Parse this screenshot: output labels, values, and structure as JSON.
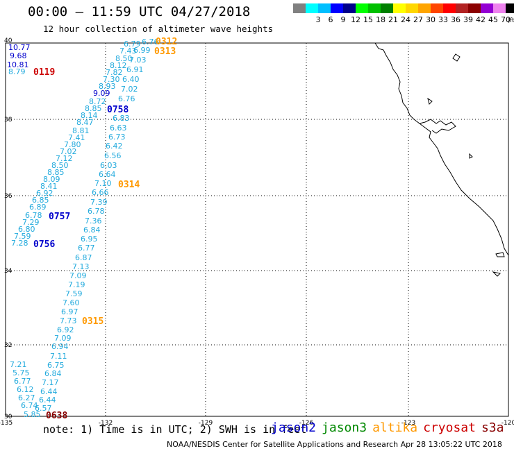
{
  "header": {
    "title": "00:00 – 11:59 UTC 04/27/2018",
    "subtitle": "12 hour collection of altimeter wave heights"
  },
  "legend": {
    "unit": "(ft)",
    "swatches": [
      {
        "color": "#808080",
        "label": ""
      },
      {
        "color": "#00ffff",
        "label": "3"
      },
      {
        "color": "#00bfff",
        "label": "6"
      },
      {
        "color": "#0000ff",
        "label": "9"
      },
      {
        "color": "#00008b",
        "label": "12"
      },
      {
        "color": "#00ff00",
        "label": "15"
      },
      {
        "color": "#00c000",
        "label": "18"
      },
      {
        "color": "#008000",
        "label": "21"
      },
      {
        "color": "#ffff00",
        "label": "24"
      },
      {
        "color": "#ffd700",
        "label": "27"
      },
      {
        "color": "#ffa500",
        "label": "30"
      },
      {
        "color": "#ff4500",
        "label": "33"
      },
      {
        "color": "#ff0000",
        "label": "36"
      },
      {
        "color": "#b22222",
        "label": "39"
      },
      {
        "color": "#8b0000",
        "label": "42"
      },
      {
        "color": "#9400d3",
        "label": "45"
      },
      {
        "color": "#ee82ee",
        "label": "70"
      },
      {
        "color": "#000000",
        "label": ""
      }
    ]
  },
  "map": {
    "xlabels": [
      "-135",
      "-132",
      "-129",
      "-126",
      "-123",
      "-120"
    ],
    "ylabels": [
      "40",
      "38",
      "36",
      "34",
      "32",
      "30"
    ],
    "satellite_colors": {
      "jason2": "#0000cc",
      "jason3": "#008800",
      "altika": "#ff9900",
      "cryosat": "#cc0000",
      "s3a": "#880000",
      "light": "#22aadd"
    },
    "pass_labels": [
      {
        "text": "0312",
        "sat": "altika"
      },
      {
        "text": "0313",
        "sat": "altika"
      },
      {
        "text": "0119",
        "sat": "cryosat"
      },
      {
        "text": "0758",
        "sat": "jason2"
      },
      {
        "text": "0314",
        "sat": "altika"
      },
      {
        "text": "0757",
        "sat": "jason2"
      },
      {
        "text": "0756",
        "sat": "jason2"
      },
      {
        "text": "0315",
        "sat": "altika"
      },
      {
        "text": "0638",
        "sat": "s3a"
      }
    ],
    "wave_labels": [
      {
        "text": "10.77",
        "c": "jason2"
      },
      {
        "text": "9.68",
        "c": "jason2"
      },
      {
        "text": "10.81",
        "c": "jason2"
      },
      {
        "text": "8.79",
        "c": "light"
      },
      {
        "text": "6.76",
        "c": "light"
      },
      {
        "text": "6.79",
        "c": "light"
      },
      {
        "text": "7.43",
        "c": "light"
      },
      {
        "text": "6.99",
        "c": "light"
      },
      {
        "text": "8.50",
        "c": "light"
      },
      {
        "text": "7.03",
        "c": "light"
      },
      {
        "text": "8.12",
        "c": "light"
      },
      {
        "text": "6.91",
        "c": "light"
      },
      {
        "text": "7.82",
        "c": "light"
      },
      {
        "text": "7.30",
        "c": "light"
      },
      {
        "text": "6.40",
        "c": "light"
      },
      {
        "text": "8.93",
        "c": "light"
      },
      {
        "text": "7.02",
        "c": "light"
      },
      {
        "text": "9.09",
        "c": "jason2"
      },
      {
        "text": "8.72",
        "c": "light"
      },
      {
        "text": "6.76",
        "c": "light"
      },
      {
        "text": "8.85",
        "c": "light"
      },
      {
        "text": "8.14",
        "c": "light"
      },
      {
        "text": "6.83",
        "c": "light"
      },
      {
        "text": "8.47",
        "c": "light"
      },
      {
        "text": "6.63",
        "c": "light"
      },
      {
        "text": "8.81",
        "c": "light"
      },
      {
        "text": "6.73",
        "c": "light"
      },
      {
        "text": "7.41",
        "c": "light"
      },
      {
        "text": "7.80",
        "c": "light"
      },
      {
        "text": "6.42",
        "c": "light"
      },
      {
        "text": "7.02",
        "c": "light"
      },
      {
        "text": "6.56",
        "c": "light"
      },
      {
        "text": "7.12",
        "c": "light"
      },
      {
        "text": "8.50",
        "c": "light"
      },
      {
        "text": "6.03",
        "c": "light"
      },
      {
        "text": "8.85",
        "c": "light"
      },
      {
        "text": "6.64",
        "c": "light"
      },
      {
        "text": "8.09",
        "c": "light"
      },
      {
        "text": "7.10",
        "c": "light"
      },
      {
        "text": "8.41",
        "c": "light"
      },
      {
        "text": "6.92",
        "c": "light"
      },
      {
        "text": "6.66",
        "c": "light"
      },
      {
        "text": "6.85",
        "c": "light"
      },
      {
        "text": "7.39",
        "c": "light"
      },
      {
        "text": "6.89",
        "c": "light"
      },
      {
        "text": "6.78",
        "c": "light"
      },
      {
        "text": "6.78",
        "c": "light"
      },
      {
        "text": "7.36",
        "c": "light"
      },
      {
        "text": "7.29",
        "c": "light"
      },
      {
        "text": "6.80",
        "c": "light"
      },
      {
        "text": "6.84",
        "c": "light"
      },
      {
        "text": "7.59",
        "c": "light"
      },
      {
        "text": "6.95",
        "c": "light"
      },
      {
        "text": "7.28",
        "c": "light"
      },
      {
        "text": "6.77",
        "c": "light"
      },
      {
        "text": "6.87",
        "c": "light"
      },
      {
        "text": "7.13",
        "c": "light"
      },
      {
        "text": "7.09",
        "c": "light"
      },
      {
        "text": "7.19",
        "c": "light"
      },
      {
        "text": "7.59",
        "c": "light"
      },
      {
        "text": "7.60",
        "c": "light"
      },
      {
        "text": "6.97",
        "c": "light"
      },
      {
        "text": "7.73",
        "c": "light"
      },
      {
        "text": "6.92",
        "c": "light"
      },
      {
        "text": "7.09",
        "c": "light"
      },
      {
        "text": "6.94",
        "c": "light"
      },
      {
        "text": "7.11",
        "c": "light"
      },
      {
        "text": "7.21",
        "c": "light"
      },
      {
        "text": "6.75",
        "c": "light"
      },
      {
        "text": "5.75",
        "c": "light"
      },
      {
        "text": "6.84",
        "c": "light"
      },
      {
        "text": "6.77",
        "c": "light"
      },
      {
        "text": "7.17",
        "c": "light"
      },
      {
        "text": "6.12",
        "c": "light"
      },
      {
        "text": "6.44",
        "c": "light"
      },
      {
        "text": "6.27",
        "c": "light"
      },
      {
        "text": "6.44",
        "c": "light"
      },
      {
        "text": "6.74",
        "c": "light"
      },
      {
        "text": "6.57",
        "c": "light"
      },
      {
        "text": "5.85",
        "c": "light"
      }
    ]
  },
  "footer": {
    "note": "note: 1) Time is in UTC; 2) SWH is in feet",
    "satellites": [
      {
        "name": "jason2",
        "color": "#0000cc"
      },
      {
        "name": "jason3",
        "color": "#008800"
      },
      {
        "name": "altika",
        "color": "#ff9900"
      },
      {
        "name": "cryosat",
        "color": "#cc0000"
      },
      {
        "name": "s3a",
        "color": "#880000"
      }
    ],
    "credit": "NOAA/NESDIS Center for Satellite Applications and Research   Apr 28 13:05:22 UTC 2018"
  }
}
